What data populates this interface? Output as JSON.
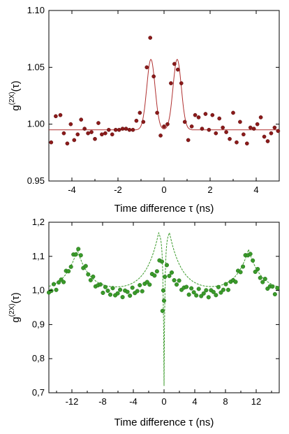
{
  "chart_data": [
    {
      "type": "scatter",
      "xlabel": "Time difference τ (ns)",
      "ylabel": "g(2X)(τ)",
      "ylabel_main": "g",
      "ylabel_sup": "(2X)",
      "ylabel_arg": "(τ)",
      "xlim": [
        -5,
        5
      ],
      "ylim": [
        0.95,
        1.1
      ],
      "xticks": [
        -4,
        -2,
        0,
        2,
        4
      ],
      "yticks": [
        0.95,
        1.0,
        1.05,
        1.1
      ],
      "ytick_labels": [
        "0.95",
        "1.00",
        "1.05",
        "1.10"
      ],
      "xtick_labels": [
        "-4",
        "-2",
        "0",
        "2",
        "4"
      ],
      "point_color": "#8b1a1a",
      "fit_color": "#b03030",
      "points": {
        "x": [
          -4.9,
          -4.7,
          -4.5,
          -4.35,
          -4.2,
          -4.05,
          -3.9,
          -3.75,
          -3.6,
          -3.45,
          -3.3,
          -3.15,
          -3.0,
          -2.85,
          -2.7,
          -2.55,
          -2.4,
          -2.25,
          -2.1,
          -1.95,
          -1.8,
          -1.65,
          -1.5,
          -1.35,
          -1.2,
          -1.05,
          -0.9,
          -0.75,
          -0.6,
          -0.45,
          -0.3,
          -0.15,
          0.0,
          0.15,
          0.3,
          0.45,
          0.6,
          0.75,
          0.9,
          1.05,
          1.2,
          1.35,
          1.5,
          1.65,
          1.8,
          1.95,
          2.1,
          2.25,
          2.4,
          2.55,
          2.7,
          2.85,
          3.0,
          3.15,
          3.3,
          3.45,
          3.6,
          3.75,
          3.9,
          4.05,
          4.2,
          4.35,
          4.5,
          4.65,
          4.8,
          4.95
        ],
        "y": [
          0.984,
          1.007,
          1.008,
          0.992,
          0.983,
          1.0,
          0.986,
          0.991,
          1.004,
          0.996,
          0.992,
          0.993,
          0.987,
          1.001,
          0.991,
          0.992,
          0.995,
          0.991,
          0.995,
          0.995,
          0.996,
          0.996,
          0.995,
          0.995,
          1.003,
          1.01,
          1.002,
          1.05,
          1.076,
          1.042,
          1.01,
          0.99,
          0.998,
          1.0,
          1.036,
          1.053,
          1.048,
          1.036,
          1.002,
          0.986,
          0.998,
          1.008,
          1.006,
          0.996,
          1.009,
          0.995,
          1.008,
          0.992,
          1.005,
          0.997,
          0.993,
          0.987,
          1.01,
          0.984,
          1.002,
          0.991,
          0.983,
          0.997,
          0.996,
          1.0,
          1.006,
          0.989,
          0.985,
          0.992,
          0.997,
          0.994
        ]
      },
      "fit": {
        "baseline": 0.995,
        "peak_centers": [
          -0.57,
          0.57
        ],
        "peak_amplitude": 0.062,
        "peak_sigma": 0.18
      }
    },
    {
      "type": "scatter",
      "xlabel": "Time difference τ (ns)",
      "ylabel": "g(2X)(τ)",
      "ylabel_main": "g",
      "ylabel_sup": "(2X)",
      "ylabel_arg": "(τ)",
      "xlim": [
        -15,
        15
      ],
      "ylim": [
        0.7,
        1.2
      ],
      "xticks": [
        -12,
        -8,
        -4,
        0,
        4,
        8,
        12
      ],
      "yticks": [
        0.7,
        0.8,
        0.9,
        1.0,
        1.1,
        1.2
      ],
      "ytick_labels": [
        "0,7",
        "0,8",
        "0,9",
        "1,0",
        "1,1",
        "1,2"
      ],
      "xtick_labels": [
        "-12",
        "-8",
        "-4",
        "0",
        "4",
        "8",
        "12"
      ],
      "point_color": "#3a9a2a",
      "fit_color": "#3a9a2a",
      "points": {
        "peaks": [
          -11.3,
          -0.2,
          11.0
        ],
        "peak_heights": [
          1.13,
          1.1,
          1.12
        ],
        "baseline": 1.0,
        "dip": {
          "x": [
            -0.2,
            -0.1,
            0.0,
            0.1
          ],
          "y": [
            0.94,
            1.0,
            0.97,
            1.04
          ]
        }
      },
      "fit": {
        "baseline": 1.0,
        "peak_centers": [
          -11.3,
          -0.7,
          0.7,
          11.0
        ],
        "peak_height": 1.12,
        "dip_min": 0.72
      }
    }
  ]
}
